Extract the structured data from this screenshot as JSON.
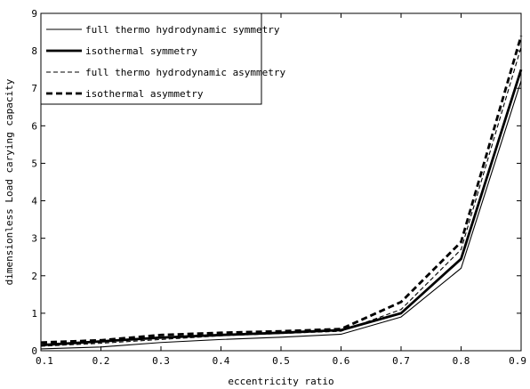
{
  "chart_data": {
    "type": "line",
    "xlabel": "eccentricity ratio",
    "ylabel": "dimensionless Load carying capacity",
    "xlim": [
      0.1,
      0.9
    ],
    "ylim": [
      0,
      9
    ],
    "xticks": [
      "0.1",
      "0.2",
      "0.3",
      "0.4",
      "0.5",
      "0.6",
      "0.7",
      "0.8",
      "0.9"
    ],
    "yticks": [
      "0",
      "1",
      "2",
      "3",
      "4",
      "5",
      "6",
      "7",
      "8",
      "9"
    ],
    "grid": false,
    "legend_position": "top-left",
    "x": [
      0.1,
      0.2,
      0.3,
      0.4,
      0.5,
      0.6,
      0.7,
      0.8,
      0.9
    ],
    "series": [
      {
        "name": "full thermo hydrodynamic symmetry",
        "style": "solid-thin",
        "values": [
          0.05,
          0.1,
          0.22,
          0.3,
          0.36,
          0.44,
          0.9,
          2.2,
          7.2
        ]
      },
      {
        "name": "isothermal symmetry",
        "style": "solid-thick",
        "values": [
          0.15,
          0.25,
          0.35,
          0.42,
          0.48,
          0.55,
          1.0,
          2.45,
          7.5
        ]
      },
      {
        "name": "full thermo hydrodynamic asymmetry",
        "style": "dashed-thin",
        "values": [
          0.12,
          0.2,
          0.3,
          0.4,
          0.46,
          0.52,
          1.1,
          2.7,
          8.1
        ]
      },
      {
        "name": "isothermal asymmetry",
        "style": "dashed-thick",
        "values": [
          0.22,
          0.28,
          0.42,
          0.48,
          0.52,
          0.58,
          1.3,
          2.9,
          8.4
        ]
      }
    ]
  }
}
